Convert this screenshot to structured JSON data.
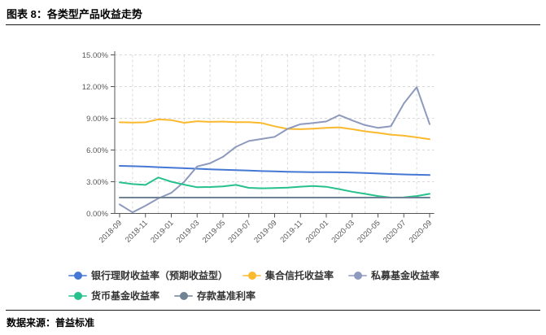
{
  "header": {
    "title": "图表 8：各类型产品收益走势"
  },
  "footer": {
    "label": "数据来源：",
    "source": "普益标准"
  },
  "chart_data": {
    "type": "line",
    "title": "各类型产品收益走势",
    "xlabel": "",
    "ylabel": "",
    "ylim": [
      0,
      15
    ],
    "grid": "dashed",
    "grid_color": "#d9d9d9",
    "axis_color": "#555555",
    "tick_label_color": "#595959",
    "legend_position": "bottom",
    "y_ticks": [
      "0.00%",
      "3.00%",
      "6.00%",
      "9.00%",
      "12.00%",
      "15.00%"
    ],
    "x": [
      "2018-09",
      "2018-10",
      "2018-11",
      "2018-12",
      "2019-01",
      "2019-02",
      "2019-03",
      "2019-04",
      "2019-05",
      "2019-06",
      "2019-07",
      "2019-08",
      "2019-09",
      "2019-10",
      "2019-11",
      "2019-12",
      "2020-01",
      "2020-02",
      "2020-03",
      "2020-04",
      "2020-05",
      "2020-06",
      "2020-07",
      "2020-08",
      "2020-09"
    ],
    "x_tick_labels": [
      "2018-09",
      "2018-11",
      "2019-01",
      "2019-03",
      "2019-05",
      "2019-07",
      "2019-09",
      "2019-11",
      "2020-01",
      "2020-03",
      "2020-05",
      "2020-07",
      "2020-09"
    ],
    "series": [
      {
        "name": "银行理财收益率（预期收益型）",
        "color": "#4577d4",
        "values": [
          4.5,
          4.47,
          4.43,
          4.38,
          4.33,
          4.28,
          4.23,
          4.18,
          4.13,
          4.09,
          4.05,
          4.01,
          3.98,
          3.95,
          3.92,
          3.9,
          3.91,
          3.89,
          3.86,
          3.82,
          3.78,
          3.73,
          3.69,
          3.66,
          3.63
        ]
      },
      {
        "name": "集合信托收益率",
        "color": "#fbb92d",
        "values": [
          8.62,
          8.6,
          8.62,
          8.9,
          8.83,
          8.58,
          8.72,
          8.66,
          8.69,
          8.63,
          8.63,
          8.55,
          8.25,
          8.0,
          7.97,
          8.02,
          8.1,
          8.15,
          7.97,
          7.77,
          7.62,
          7.45,
          7.35,
          7.2,
          7.02
        ]
      },
      {
        "name": "私募基金收益率",
        "color": "#8e9abd",
        "values": [
          0.85,
          0.1,
          0.73,
          1.42,
          1.95,
          3.0,
          4.45,
          4.75,
          5.35,
          6.3,
          6.85,
          7.05,
          7.25,
          8.0,
          8.45,
          8.55,
          8.7,
          9.3,
          8.8,
          8.35,
          8.1,
          8.25,
          10.4,
          11.95,
          8.45
        ]
      },
      {
        "name": "货币基金收益率",
        "color": "#27c18c",
        "values": [
          2.95,
          2.78,
          2.7,
          3.4,
          3.0,
          2.72,
          2.48,
          2.5,
          2.55,
          2.7,
          2.42,
          2.38,
          2.4,
          2.45,
          2.53,
          2.6,
          2.52,
          2.3,
          2.05,
          1.85,
          1.65,
          1.5,
          1.52,
          1.65,
          1.85
        ]
      },
      {
        "name": "存款基准利率",
        "color": "#708394",
        "values": [
          1.5,
          1.5,
          1.5,
          1.5,
          1.5,
          1.5,
          1.5,
          1.5,
          1.5,
          1.5,
          1.5,
          1.5,
          1.5,
          1.5,
          1.5,
          1.5,
          1.5,
          1.5,
          1.5,
          1.5,
          1.5,
          1.5,
          1.5,
          1.5,
          1.5
        ]
      }
    ]
  }
}
